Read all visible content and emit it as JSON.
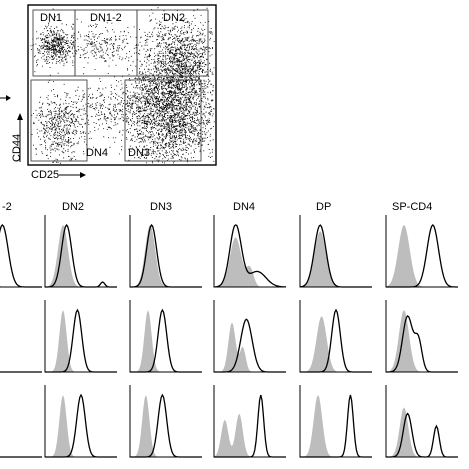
{
  "dot_plot": {
    "gates": {
      "dn1": "DN1",
      "dn1_2": "DN1-2",
      "dn2": "DN2",
      "dn3": "DN3",
      "dn4": "DN4"
    },
    "axes": {
      "x": "CD25",
      "y": "CD44"
    }
  },
  "histogram_grid": {
    "columns": [
      "-2",
      "DN2",
      "DN3",
      "DN4",
      "DP",
      "SP-CD4"
    ],
    "rows": 3
  },
  "colors": {
    "filled_histogram": "#bdbdbd",
    "outline_histogram": "#000000",
    "dots": "#000000"
  }
}
